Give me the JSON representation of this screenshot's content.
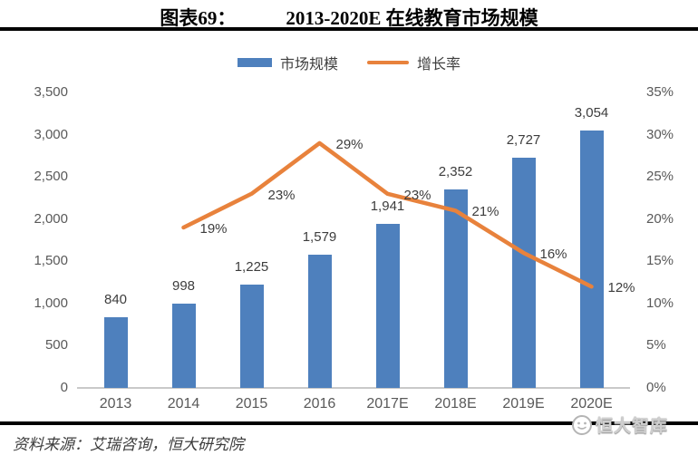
{
  "header": {
    "figure_label": "图表69：",
    "title": "2013-2020E 在线教育市场规模"
  },
  "legend": [
    {
      "label": "市场规模",
      "color": "#4e80bd",
      "type": "bar"
    },
    {
      "label": "增长率",
      "color": "#e8823c",
      "type": "line"
    }
  ],
  "chart_data": {
    "type": "bar",
    "title": "2013-2020E 在线教育市场规模",
    "categories": [
      "2013",
      "2014",
      "2015",
      "2016",
      "2017E",
      "2018E",
      "2019E",
      "2020E"
    ],
    "series": [
      {
        "name": "市场规模",
        "type": "bar",
        "axis": "left",
        "color": "#4e80bd",
        "values": [
          840,
          998,
          1225,
          1579,
          1941,
          2352,
          2727,
          3054
        ],
        "labels": [
          "840",
          "998",
          "1,225",
          "1,579",
          "1,941",
          "2,352",
          "2,727",
          "3,054"
        ]
      },
      {
        "name": "增长率",
        "type": "line",
        "axis": "right",
        "color": "#e8823c",
        "values": [
          null,
          19,
          23,
          29,
          23,
          21,
          16,
          12
        ],
        "labels": [
          null,
          "19%",
          "23%",
          "29%",
          "23%",
          "21%",
          "16%",
          "12%"
        ]
      }
    ],
    "left_axis": {
      "min": 0,
      "max": 3500,
      "ticks": [
        "3,500",
        "3,000",
        "2,500",
        "2,000",
        "1,500",
        "1,000",
        "500",
        "0"
      ]
    },
    "right_axis": {
      "min": 0,
      "max": 35,
      "ticks": [
        "35%",
        "30%",
        "25%",
        "20%",
        "15%",
        "10%",
        "5%",
        "0%"
      ]
    },
    "grid": false,
    "legend_position": "top"
  },
  "footer": {
    "source": "资料来源：艾瑞咨询，恒大研究院",
    "logo_text": "恒大智库"
  }
}
